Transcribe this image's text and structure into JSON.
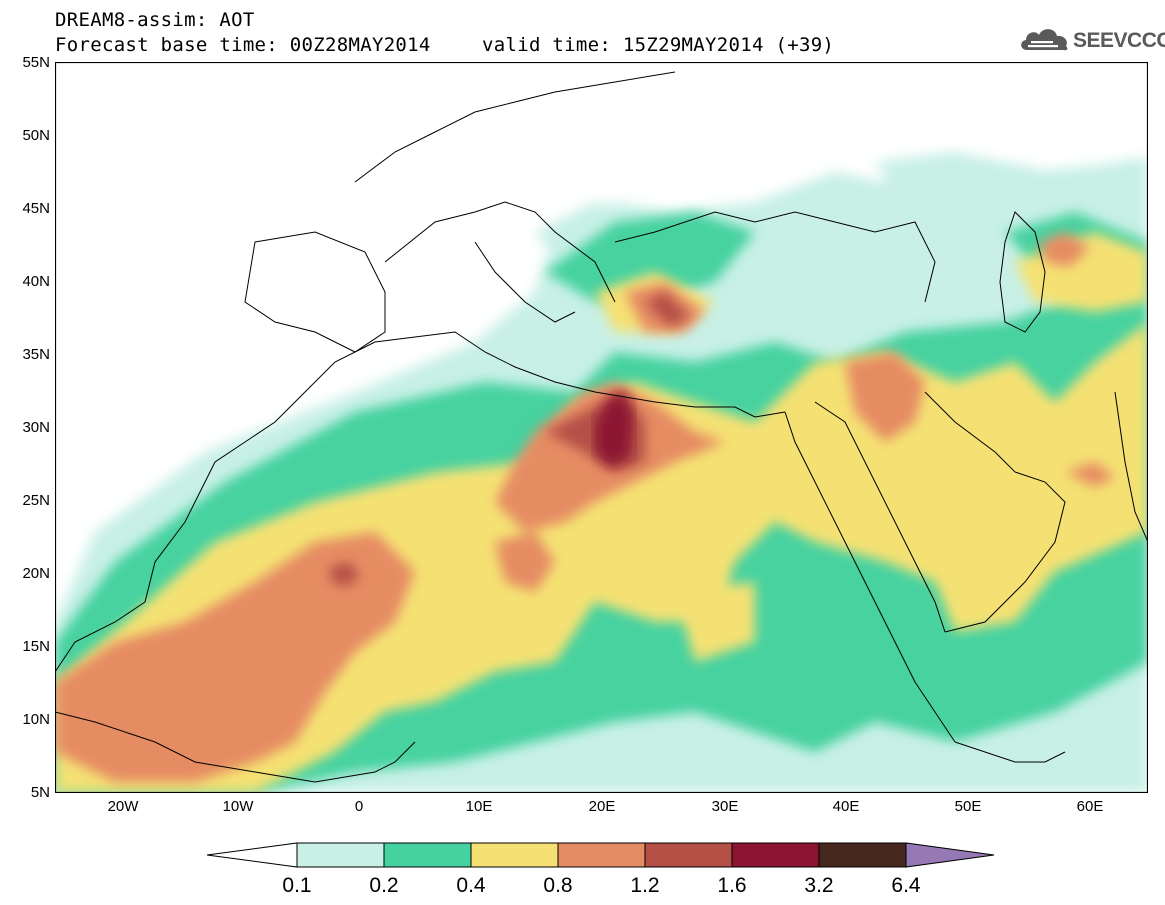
{
  "header": {
    "title_line1": "DREAM8-assim: AOT",
    "title_line2": "Forecast base time: 00Z28MAY2014",
    "valid_time": "valid time: 15Z29MAY2014 (+39)"
  },
  "logo": {
    "text": "SEEVCCC",
    "icon": "cloud-icon"
  },
  "map": {
    "projection": "lat-lon",
    "lat_range": [
      5,
      55
    ],
    "lon_range": [
      -25,
      65
    ],
    "lat_labels": [
      "55N",
      "50N",
      "45N",
      "40N",
      "35N",
      "30N",
      "25N",
      "20N",
      "15N",
      "10N",
      "5N"
    ],
    "lon_labels": [
      "20W",
      "10W",
      "0",
      "10E",
      "20E",
      "30E",
      "40E",
      "50E",
      "60E"
    ],
    "lat_values": [
      55,
      50,
      45,
      40,
      35,
      30,
      25,
      20,
      15,
      10,
      5
    ],
    "lon_values": [
      -20,
      -10,
      0,
      10,
      20,
      30,
      40,
      50,
      60
    ],
    "variable": "AOT",
    "notes": "Dust aerosol optical thickness field; highest values (>1.6) over eastern Libya near 30N 21E"
  },
  "colorbar": {
    "labels": [
      "0.1",
      "0.2",
      "0.4",
      "0.8",
      "1.2",
      "1.6",
      "3.2",
      "6.4"
    ],
    "colors": [
      "#ffffff",
      "#c8f0e6",
      "#46d2a0",
      "#f5e173",
      "#e68c64",
      "#b45046",
      "#8c1432",
      "#46281e",
      "#9678b4"
    ],
    "extend": "both"
  }
}
